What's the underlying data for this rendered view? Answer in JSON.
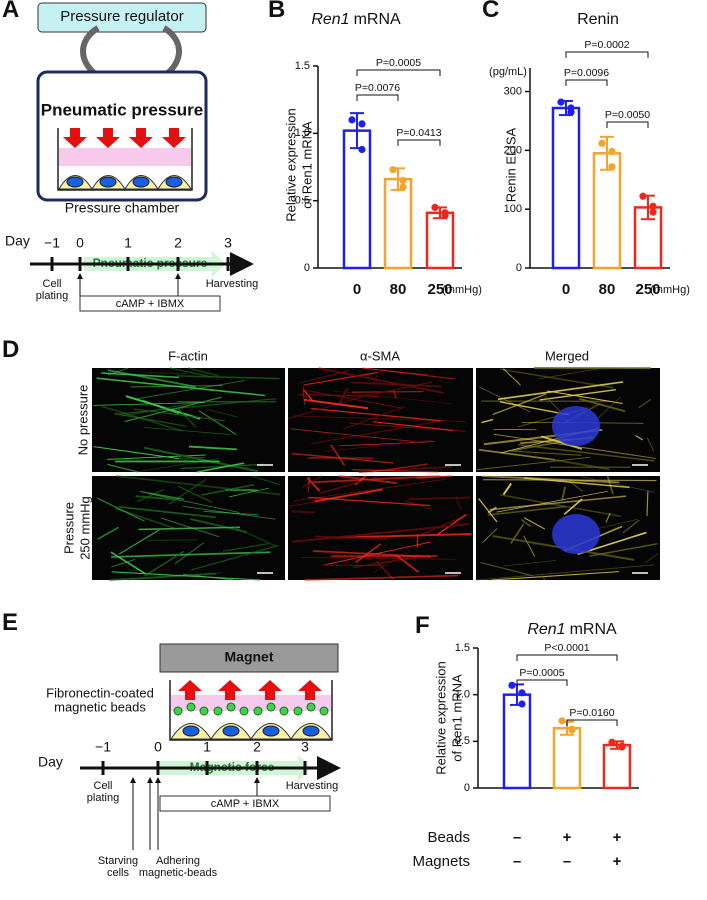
{
  "panel_a": {
    "letter": "A",
    "regulator": "Pressure regulator",
    "chamber_title": "Pneumatic pressure",
    "chamber_label": "Pressure chamber",
    "timeline": {
      "day": "Day",
      "days": [
        "−1",
        "0",
        "1",
        "2",
        "3"
      ],
      "arrow": "Pneumatic pressure",
      "start": [
        "Cell",
        "plating"
      ],
      "end": "Harvesting",
      "treatment": "cAMP + IBMX"
    }
  },
  "panel_d": {
    "letter": "D",
    "columns": [
      "F-actin",
      "α-SMA",
      "Merged"
    ],
    "rows": [
      [
        "No pressure"
      ],
      [
        "Pressure",
        "250 mmHg"
      ]
    ]
  },
  "panel_e": {
    "letter": "E",
    "magnet": "Magnet",
    "beads": [
      "Fibronectin-coated",
      "magnetic beads"
    ],
    "timeline": {
      "day": "Day",
      "days": [
        "−1",
        "0",
        "1",
        "2",
        "3"
      ],
      "arrow": "Magnetic force",
      "start": [
        "Cell",
        "plating"
      ],
      "end": "Harvesting",
      "treatment": "cAMP + IBMX",
      "starving": [
        "Starving",
        "cells"
      ],
      "adhering": [
        "Adhering",
        "magnetic-beads"
      ]
    }
  },
  "chart_data": [
    {
      "type": "bar",
      "letter": "B",
      "title": [
        "Ren1",
        "mRNA"
      ],
      "ylabel": [
        "Relative expression",
        "of Ren1 mRNA"
      ],
      "unit": "(mmHg)",
      "categories": [
        "0",
        "80",
        "250"
      ],
      "values": [
        1.02,
        0.66,
        0.41
      ],
      "errors": [
        0.13,
        0.08,
        0.04
      ],
      "points": [
        [
          1.1,
          1.07,
          0.88
        ],
        [
          0.73,
          0.65,
          0.6
        ],
        [
          0.45,
          0.41,
          0.39
        ]
      ],
      "colors": [
        "#1f1fef",
        "#f5a32a",
        "#f0281c"
      ],
      "ylim": [
        0,
        1.5
      ],
      "yticks": [
        0,
        0.5,
        {
          "value": 1,
          "label": "1.0"
        },
        1.5
      ],
      "comparisons": [
        {
          "pair": [
            0,
            2
          ],
          "label": "P=0.0005"
        },
        {
          "pair": [
            0,
            1
          ],
          "label": "P=0.0076"
        },
        {
          "pair": [
            1,
            2
          ],
          "label": "P=0.0413"
        }
      ]
    },
    {
      "type": "bar",
      "letter": "C",
      "title": [
        "Renin"
      ],
      "ylabel": [
        "Renin ELISA"
      ],
      "yunit": "(pg/mL)",
      "unit": "(mmHg)",
      "categories": [
        "0",
        "80",
        "250"
      ],
      "values": [
        272,
        195,
        103
      ],
      "errors": [
        12,
        28,
        20
      ],
      "points": [
        [
          282,
          265,
          272
        ],
        [
          212,
          172,
          198
        ],
        [
          122,
          95,
          105
        ]
      ],
      "colors": [
        "#1f1fef",
        "#f5a32a",
        "#f0281c"
      ],
      "ylim": [
        0,
        340
      ],
      "yticks": [
        0,
        100,
        200,
        300
      ],
      "comparisons": [
        {
          "pair": [
            0,
            2
          ],
          "label": "P=0.0002"
        },
        {
          "pair": [
            0,
            1
          ],
          "label": "P=0.0096"
        },
        {
          "pair": [
            1,
            2
          ],
          "label": "P=0.0050"
        }
      ]
    },
    {
      "type": "bar",
      "letter": "F",
      "title": [
        "Ren1",
        "mRNA"
      ],
      "ylabel": [
        "Relative expression",
        "of Ren1 mRNA"
      ],
      "values": [
        1.0,
        0.64,
        0.46
      ],
      "errors": [
        0.11,
        0.07,
        0.04
      ],
      "points": [
        [
          1.1,
          1.02,
          0.9
        ],
        [
          0.72,
          0.63,
          0.62
        ],
        [
          0.49,
          0.45,
          0.44
        ]
      ],
      "colors": [
        "#1f1fef",
        "#f5a32a",
        "#f0281c"
      ],
      "ylim": [
        0,
        1.5
      ],
      "yticks": [
        0,
        0.5,
        {
          "value": 1,
          "label": "1.0"
        },
        1.5
      ],
      "factors": [
        {
          "name": "Beads",
          "levels": [
            "–",
            "+",
            "+"
          ]
        },
        {
          "name": "Magnets",
          "levels": [
            "–",
            "–",
            "+"
          ]
        }
      ],
      "comparisons": [
        {
          "pair": [
            0,
            2
          ],
          "label": "P<0.0001"
        },
        {
          "pair": [
            0,
            1
          ],
          "label": "P=0.0005"
        },
        {
          "pair": [
            1,
            2
          ],
          "label": "P=0.0160"
        }
      ]
    }
  ]
}
